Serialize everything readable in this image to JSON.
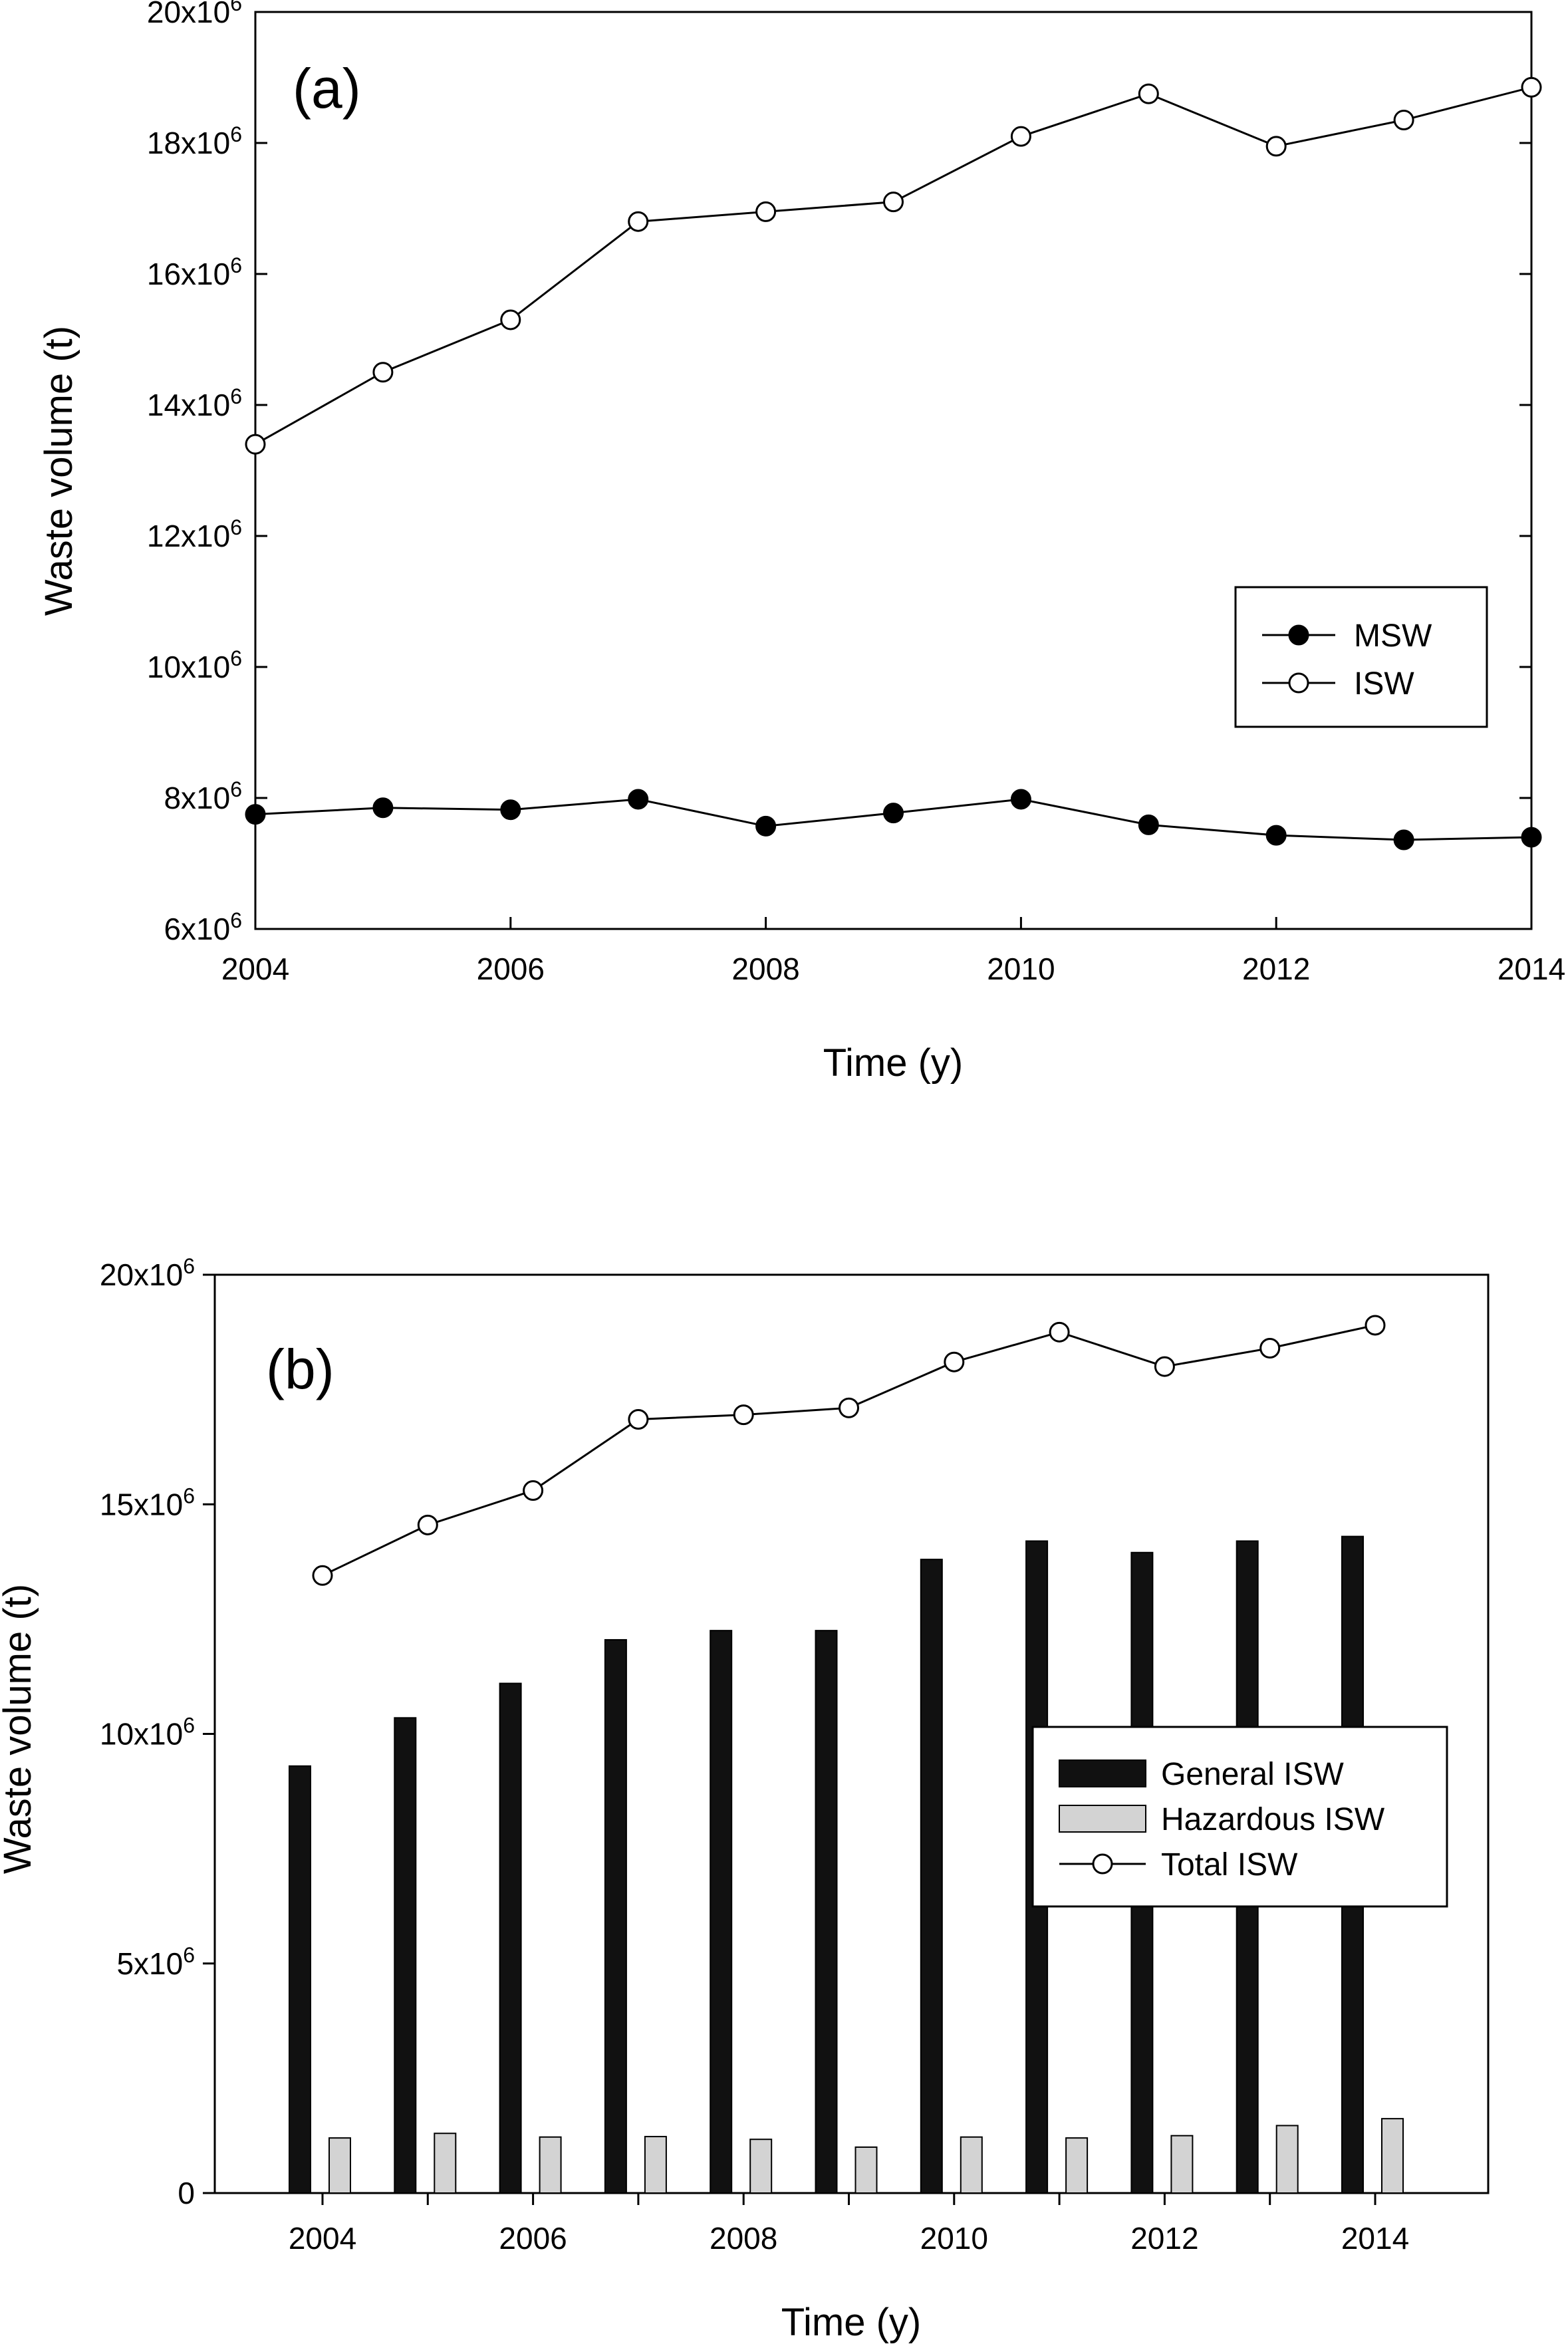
{
  "chart_data": [
    {
      "type": "line",
      "panel_label": "(a)",
      "xlabel": "Time (y)",
      "ylabel": "Waste volume (t)",
      "xlim": [
        2004,
        2014
      ],
      "ylim": [
        6000000,
        20000000
      ],
      "x_ticks": [
        2004,
        2006,
        2008,
        2010,
        2012,
        2014
      ],
      "x_tick_labels": [
        "2004",
        "2006",
        "2008",
        "2010",
        "2012",
        "2014"
      ],
      "y_ticks": [
        6000000,
        8000000,
        10000000,
        12000000,
        14000000,
        16000000,
        18000000,
        20000000
      ],
      "y_tick_labels": [
        {
          "base": "6x10",
          "exp": "6"
        },
        {
          "base": "8x10",
          "exp": "6"
        },
        {
          "base": "10x10",
          "exp": "6"
        },
        {
          "base": "12x10",
          "exp": "6"
        },
        {
          "base": "14x10",
          "exp": "6"
        },
        {
          "base": "16x10",
          "exp": "6"
        },
        {
          "base": "18x10",
          "exp": "6"
        },
        {
          "base": "20x10",
          "exp": "6"
        }
      ],
      "x": [
        2004,
        2005,
        2006,
        2007,
        2008,
        2009,
        2010,
        2011,
        2012,
        2013,
        2014
      ],
      "series": [
        {
          "name": "MSW",
          "marker": "filled-circle",
          "color": "#000000",
          "values": [
            7750000,
            7850000,
            7820000,
            7980000,
            7570000,
            7770000,
            7980000,
            7590000,
            7430000,
            7360000,
            7400000
          ]
        },
        {
          "name": "ISW",
          "marker": "open-circle",
          "color": "#000000",
          "values": [
            13400000,
            14500000,
            15300000,
            16800000,
            16950000,
            17100000,
            18100000,
            18750000,
            17950000,
            18350000,
            18850000
          ]
        }
      ],
      "legend": {
        "position": "center-right",
        "entries": [
          "MSW",
          "ISW"
        ]
      },
      "grid": false
    },
    {
      "type": "bar",
      "panel_label": "(b)",
      "xlabel": "Time (y)",
      "ylabel": "Waste volume (t)",
      "categories": [
        "2004",
        "2005",
        "2006",
        "2007",
        "2008",
        "2009",
        "2010",
        "2011",
        "2012",
        "2013",
        "2014"
      ],
      "x_tick_labels": [
        "2004",
        "2006",
        "2008",
        "2010",
        "2012",
        "2014"
      ],
      "ylim": [
        0,
        20000000
      ],
      "y_ticks": [
        0,
        5000000,
        10000000,
        15000000,
        20000000
      ],
      "y_tick_labels": [
        {
          "base": "0",
          "exp": ""
        },
        {
          "base": "5x10",
          "exp": "6"
        },
        {
          "base": "10x10",
          "exp": "6"
        },
        {
          "base": "15x10",
          "exp": "6"
        },
        {
          "base": "20x10",
          "exp": "6"
        }
      ],
      "series": [
        {
          "name": "General ISW",
          "kind": "bar",
          "color": "#111111",
          "values": [
            9300000,
            10350000,
            11100000,
            12050000,
            12250000,
            12250000,
            13800000,
            14200000,
            13950000,
            14200000,
            14300000
          ]
        },
        {
          "name": "Hazardous ISW",
          "kind": "bar",
          "color": "#d3d3d3",
          "values": [
            1200000,
            1300000,
            1220000,
            1230000,
            1170000,
            1000000,
            1220000,
            1200000,
            1250000,
            1470000,
            1620000
          ]
        },
        {
          "name": "Total ISW",
          "kind": "line",
          "marker": "open-circle",
          "color": "#000000",
          "values": [
            13450000,
            14550000,
            15300000,
            16850000,
            16950000,
            17100000,
            18100000,
            18750000,
            18000000,
            18400000,
            18900000
          ]
        }
      ],
      "legend": {
        "position": "center-right",
        "entries": [
          "General ISW",
          "Hazardous ISW",
          "Total ISW"
        ]
      },
      "grid": false
    }
  ]
}
